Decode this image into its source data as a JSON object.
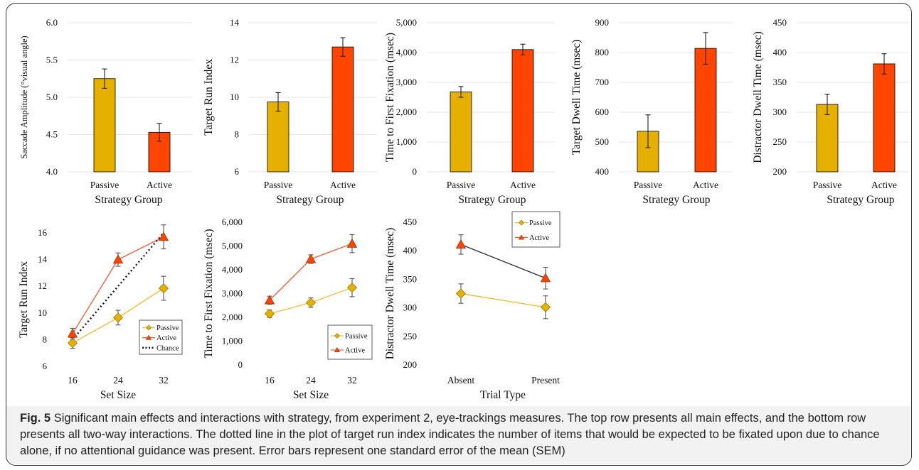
{
  "colors": {
    "passive": "#E6B000",
    "active": "#FF4500",
    "line_passive": "#F2BE3C",
    "line_active": "#F2603C",
    "grid": "#e6e6e6"
  },
  "caption": {
    "label": "Fig. 5",
    "text": "Significant main effects and interactions with strategy, from experiment 2, eye-trackings measures. The top row presents all main effects, and the bottom row presents all two-way interactions. The dotted line in the plot of target run index indicates the number of items that would be expected to be fixated upon due to chance alone, if no attentional guidance was present. Error bars represent one standard error of the mean (SEM)"
  },
  "chart_data": [
    {
      "id": "bar-saccade",
      "type": "bar",
      "categories": [
        "Passive",
        "Active"
      ],
      "values": [
        5.25,
        4.53
      ],
      "errors": [
        0.13,
        0.12
      ],
      "ylabel": "Saccade Amplitude (°visual angle)",
      "xlabel": "Strategy Group",
      "ylim": [
        4.0,
        6.0
      ],
      "yticks": [
        "4.0",
        "4.5",
        "5.0",
        "5.5",
        "6.0"
      ],
      "grid": true
    },
    {
      "id": "bar-runindex",
      "type": "bar",
      "categories": [
        "Passive",
        "Active"
      ],
      "values": [
        9.75,
        12.7
      ],
      "errors": [
        0.5,
        0.5
      ],
      "ylabel": "Target Run Index",
      "xlabel": "Strategy Group",
      "ylim": [
        6,
        14
      ],
      "yticks": [
        "6",
        "8",
        "10",
        "12",
        "14"
      ],
      "grid": true
    },
    {
      "id": "bar-firstfix",
      "type": "bar",
      "categories": [
        "Passive",
        "Active"
      ],
      "values": [
        2680,
        4100
      ],
      "errors": [
        180,
        180
      ],
      "ylabel": "Time to First Fixation (msec)",
      "xlabel": "Strategy Group",
      "ylim": [
        0,
        5000
      ],
      "yticks": [
        "0",
        "1,000",
        "2,000",
        "3,000",
        "4,000",
        "5,000"
      ],
      "grid": true
    },
    {
      "id": "bar-targetdwell",
      "type": "bar",
      "categories": [
        "Passive",
        "Active"
      ],
      "values": [
        536,
        814
      ],
      "errors": [
        55,
        53
      ],
      "ylabel": "Target Dwell Time (msec)",
      "xlabel": "Strategy Group",
      "ylim": [
        400,
        900
      ],
      "yticks": [
        "400",
        "500",
        "600",
        "700",
        "800",
        "900"
      ],
      "grid": true
    },
    {
      "id": "bar-distractordwell",
      "type": "bar",
      "categories": [
        "Passive",
        "Active"
      ],
      "values": [
        313,
        381
      ],
      "errors": [
        17,
        17
      ],
      "ylabel": "Distractor Dwell Time (msec)",
      "xlabel": "Strategy Group",
      "ylim": [
        200,
        450
      ],
      "yticks": [
        "200",
        "250",
        "300",
        "350",
        "400",
        "450"
      ],
      "grid": true
    },
    {
      "id": "line-runindex",
      "type": "line",
      "x": [
        "16",
        "24",
        "32"
      ],
      "xlabel": "Set Size",
      "ylabel": "Target Run Index",
      "ylim": [
        6,
        16
      ],
      "yticks": [
        "6",
        "8",
        "10",
        "12",
        "14",
        "16"
      ],
      "grid": false,
      "series": [
        {
          "name": "Passive",
          "values": [
            7.75,
            9.65,
            11.85
          ],
          "errors": [
            0.4,
            0.55,
            0.9
          ],
          "marker": "diamond"
        },
        {
          "name": "Active",
          "values": [
            8.45,
            14.0,
            15.7
          ],
          "errors": [
            0.4,
            0.5,
            0.9
          ],
          "marker": "triangle"
        },
        {
          "name": "Chance",
          "values": [
            8.0,
            12.0,
            16.0
          ],
          "style": "dotted"
        }
      ],
      "legend": "bottom-right"
    },
    {
      "id": "line-firstfix",
      "type": "line",
      "x": [
        "16",
        "24",
        "32"
      ],
      "xlabel": "Set Size",
      "ylabel": "Time to First Fixation (msec)",
      "ylim": [
        0,
        6000
      ],
      "yticks": [
        "0",
        "1,000",
        "2,000",
        "3,000",
        "4,000",
        "5,000",
        "6,000"
      ],
      "grid": false,
      "series": [
        {
          "name": "Passive",
          "values": [
            2150,
            2620,
            3250
          ],
          "errors": [
            160,
            200,
            380
          ],
          "marker": "diamond"
        },
        {
          "name": "Active",
          "values": [
            2720,
            4450,
            5100
          ],
          "errors": [
            170,
            180,
            380
          ],
          "marker": "triangle"
        }
      ],
      "legend": "bottom-right"
    },
    {
      "id": "line-distractordwell",
      "type": "line",
      "x": [
        "Absent",
        "Present"
      ],
      "xlabel": "Trial Type",
      "ylabel": "Distractor Dwell Time (msec)",
      "ylim": [
        200,
        450
      ],
      "yticks": [
        "200",
        "250",
        "300",
        "350",
        "400",
        "450"
      ],
      "grid": false,
      "series": [
        {
          "name": "Passive",
          "values": [
            325,
            301
          ],
          "errors": [
            17,
            20
          ],
          "marker": "diamond"
        },
        {
          "name": "Active",
          "values": [
            411,
            352
          ],
          "errors": [
            17,
            19
          ],
          "marker": "triangle"
        }
      ],
      "legend": "top-right"
    }
  ]
}
